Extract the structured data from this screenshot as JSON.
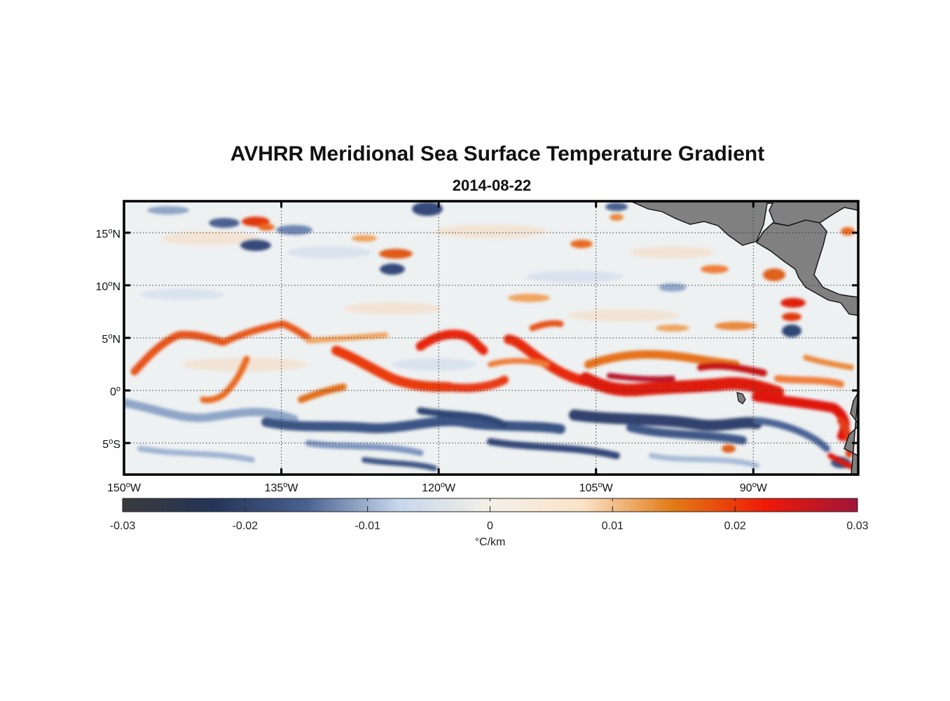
{
  "map": {
    "title": "AVHRR Meridional Sea Surface Temperature Gradient",
    "subtitle": "2014-08-22",
    "lon_range": [
      -150,
      -80
    ],
    "lat_range": [
      -8,
      18
    ],
    "lon_ticks": [
      {
        "value": -150,
        "deg": "150",
        "hemi": "W"
      },
      {
        "value": -135,
        "deg": "135",
        "hemi": "W"
      },
      {
        "value": -120,
        "deg": "120",
        "hemi": "W"
      },
      {
        "value": -105,
        "deg": "105",
        "hemi": "W"
      },
      {
        "value": -90,
        "deg": "90",
        "hemi": "W"
      }
    ],
    "lat_ticks": [
      {
        "value": 15,
        "deg": "15",
        "hemi": "N"
      },
      {
        "value": 10,
        "deg": "10",
        "hemi": "N"
      },
      {
        "value": 5,
        "deg": "5",
        "hemi": "N"
      },
      {
        "value": 0,
        "deg": "0",
        "hemi": ""
      },
      {
        "value": -5,
        "deg": "5",
        "hemi": "S"
      }
    ],
    "grid": "dotted",
    "land_color": "#808080",
    "background_color": "#eef1f2"
  },
  "colorbar": {
    "range": [
      -0.03,
      0.03
    ],
    "ticks": [
      "-0.03",
      "-0.02",
      "-0.01",
      "0",
      "0.01",
      "0.02",
      "0.03"
    ],
    "unit_label": "°C/km",
    "stops": [
      "#3a3a3c",
      "#243558",
      "#4a6190",
      "#c6d7ec",
      "#f3efe6",
      "#fbe3c8",
      "#e27a14",
      "#f01a06",
      "#a0143a"
    ]
  }
}
